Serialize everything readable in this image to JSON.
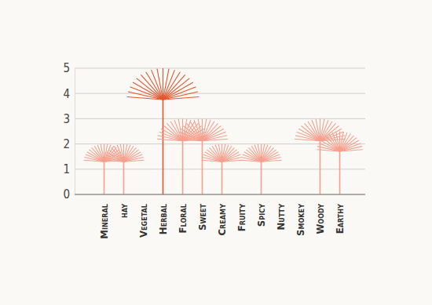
{
  "chart_data": {
    "type": "bar",
    "categories": [
      "Mineral",
      "hay",
      "Vegetal",
      "Herbal",
      "Floral",
      "Sweet",
      "Creamy",
      "Fruity",
      "Spicy",
      "Nutty",
      "Smokey",
      "Woody",
      "Earthy"
    ],
    "values": [
      2,
      2,
      0,
      5,
      3,
      3,
      2,
      0,
      2,
      0,
      0,
      3,
      2.5
    ],
    "colors": [
      "#f4a08e",
      "#f4a08e",
      "#f4a08e",
      "#e2562e",
      "#f4a08e",
      "#f4a08e",
      "#f4a08e",
      "#f4a08e",
      "#f4a08e",
      "#f4a08e",
      "#f4a08e",
      "#f4a08e",
      "#f4a08e"
    ],
    "ylim": [
      0,
      5
    ],
    "yticks": [
      0,
      1,
      2,
      3,
      4,
      5
    ],
    "grid": true
  }
}
